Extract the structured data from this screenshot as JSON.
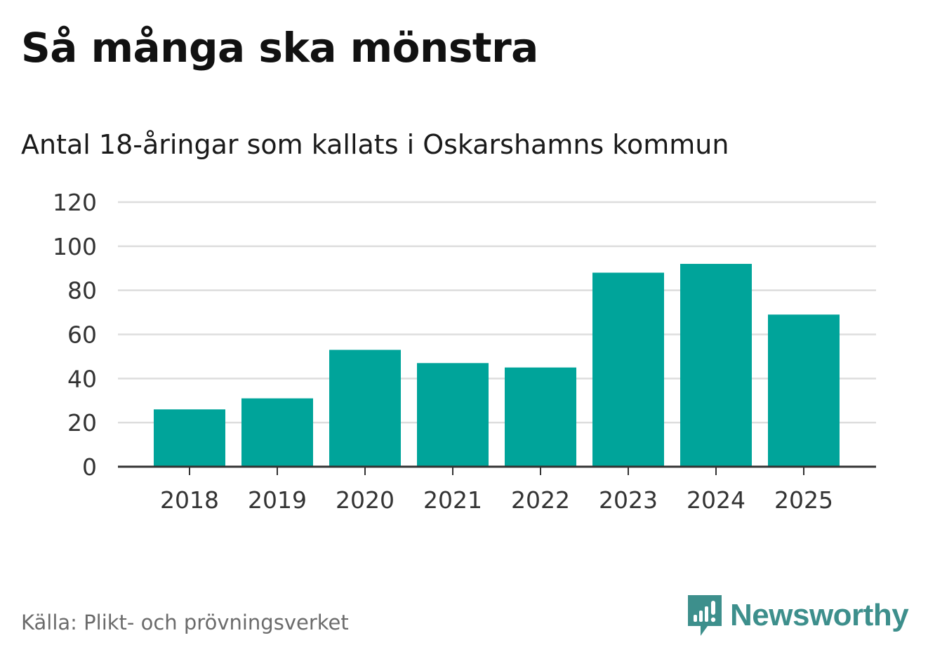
{
  "header": {
    "title": "Så många ska mönstra",
    "subtitle": "Antal 18-åringar som kallats i Oskarshamns kommun"
  },
  "footer": {
    "source": "Källa: Plikt- och prövningsverket",
    "brand": "Newsworthy",
    "brand_icon": "newsworthy-logo-icon"
  },
  "colors": {
    "bar": "#00a49a",
    "grid": "#dddddd",
    "axis": "#333333",
    "brand": "#3d8f8c"
  },
  "chart_data": {
    "type": "bar",
    "title": "Så många ska mönstra",
    "subtitle": "Antal 18-åringar som kallats i Oskarshamns kommun",
    "categories": [
      "2018",
      "2019",
      "2020",
      "2021",
      "2022",
      "2023",
      "2024",
      "2025"
    ],
    "values": [
      26,
      31,
      53,
      47,
      45,
      88,
      92,
      69
    ],
    "ylim": [
      0,
      120
    ],
    "yticks": [
      0,
      20,
      40,
      60,
      80,
      100,
      120
    ],
    "grid": true,
    "legend": "none"
  }
}
